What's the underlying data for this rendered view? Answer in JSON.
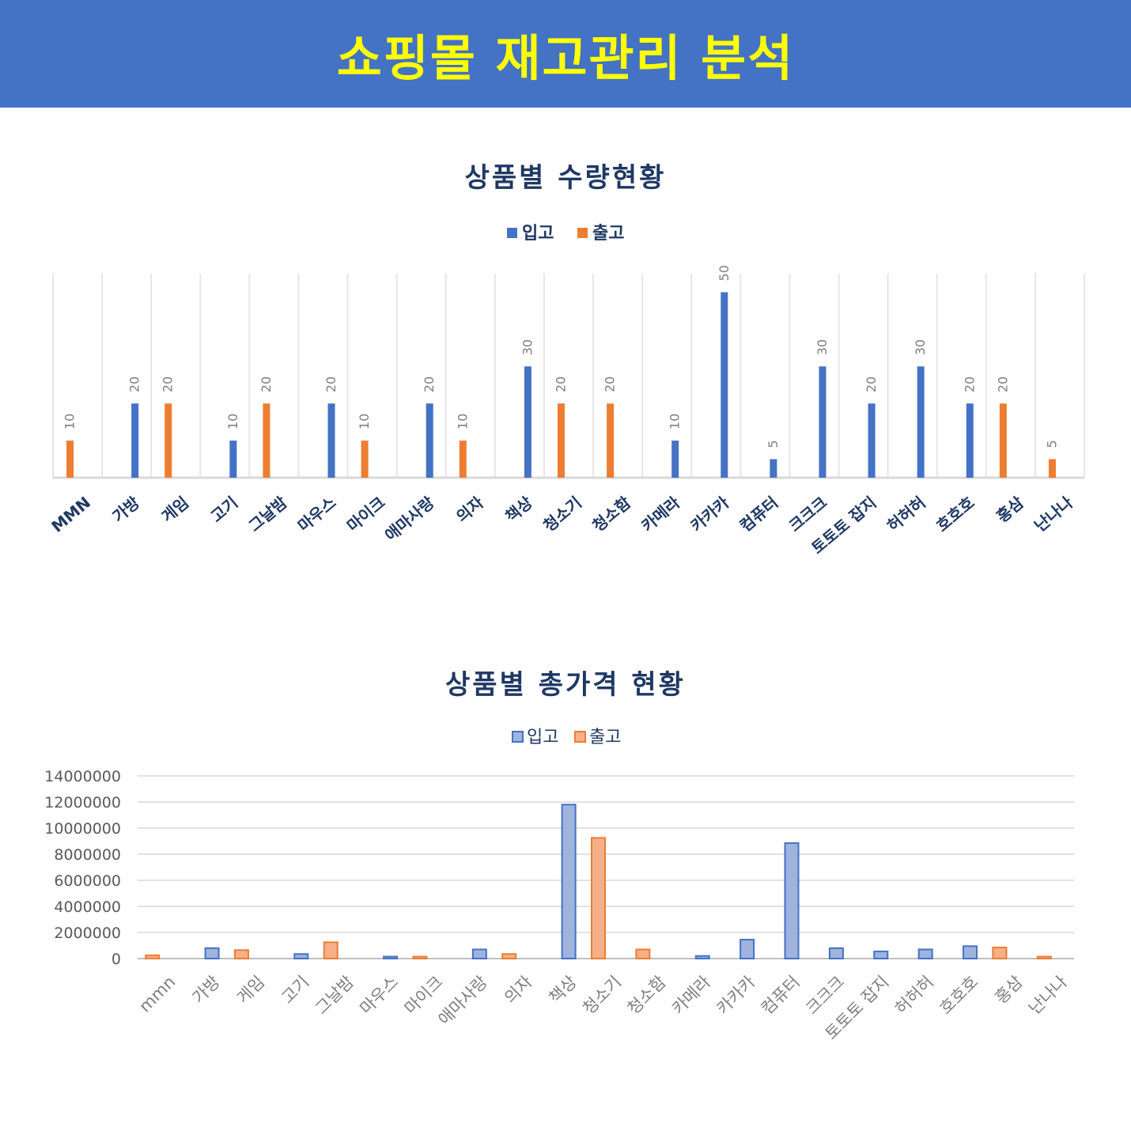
{
  "header": {
    "title": "쇼핑몰 재고관리 분석"
  },
  "colors": {
    "header_bg": "#4472c4",
    "header_text": "#ffff00",
    "in": "#4472c4",
    "out": "#ed7d31",
    "in_fill_light": "#9fb3dd",
    "out_fill_light": "#f5b08a",
    "title_text": "#1f3864",
    "axis_text": "#7f7f7f"
  },
  "chart_data": [
    {
      "type": "bar",
      "title": "상품별 수량현황",
      "legend": [
        "입고",
        "출고"
      ],
      "legend_position": "top",
      "categories": [
        "MMN",
        "가방",
        "게임",
        "고기",
        "그날밤",
        "마우스",
        "마이크",
        "애마사랑",
        "의자",
        "책상",
        "청소기",
        "청소함",
        "카메라",
        "카카카",
        "컴퓨터",
        "크크크",
        "토토토 잡지",
        "허허허",
        "호호호",
        "홍삼",
        "난나나"
      ],
      "series": [
        {
          "name": "입고",
          "values": [
            null,
            20,
            null,
            10,
            null,
            20,
            null,
            20,
            null,
            30,
            null,
            null,
            10,
            50,
            5,
            30,
            20,
            30,
            20,
            null,
            null
          ]
        },
        {
          "name": "출고",
          "values": [
            10,
            null,
            20,
            null,
            20,
            null,
            10,
            null,
            10,
            null,
            20,
            20,
            null,
            null,
            null,
            null,
            null,
            null,
            null,
            20,
            5
          ]
        }
      ],
      "ylim": [
        0,
        55
      ],
      "grid": "vertical",
      "data_labels": true
    },
    {
      "type": "bar",
      "title": "상품별 총가격 현황",
      "legend": [
        "입고",
        "출고"
      ],
      "legend_position": "top",
      "categories": [
        "mmn",
        "가방",
        "게임",
        "고기",
        "그날밤",
        "마우스",
        "마이크",
        "애마사랑",
        "의자",
        "책상",
        "청소기",
        "청소함",
        "카메라",
        "카카카",
        "컴퓨터",
        "크크크",
        "토토토 잡지",
        "허허허",
        "호호호",
        "홍삼",
        "난나나"
      ],
      "series": [
        {
          "name": "입고",
          "values": [
            null,
            800000,
            null,
            350000,
            null,
            150000,
            null,
            700000,
            null,
            11800000,
            null,
            null,
            200000,
            1450000,
            8850000,
            800000,
            550000,
            700000,
            950000,
            null,
            null
          ]
        },
        {
          "name": "출고",
          "values": [
            250000,
            null,
            650000,
            null,
            1250000,
            null,
            150000,
            null,
            350000,
            null,
            9250000,
            700000,
            null,
            null,
            null,
            null,
            null,
            null,
            null,
            850000,
            150000
          ]
        }
      ],
      "ylim": [
        0,
        14000000
      ],
      "yticks": [
        "0",
        "2000000",
        "4000000",
        "6000000",
        "8000000",
        "10000000",
        "12000000",
        "14000000"
      ],
      "grid": "horizontal",
      "data_labels": false
    }
  ]
}
